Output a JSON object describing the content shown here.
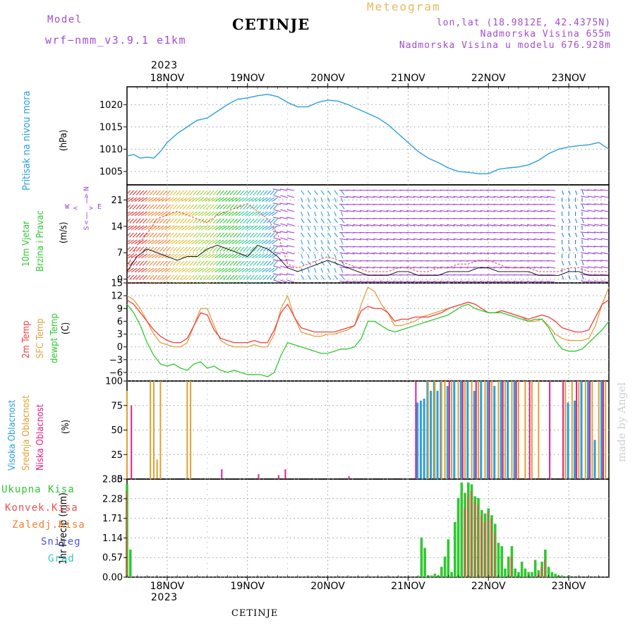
{
  "header": {
    "model_label": "Model",
    "model_name": "wrf−nmm_v3.9.1 e1km",
    "station": "CETINJE",
    "product": "Meteogram",
    "lonlat": "lon,lat (18.9812E, 42.4375N)",
    "elevation": "Nadmorska Visina 655m",
    "model_elevation": "Nadmorska Visina u modelu 676.928m"
  },
  "footer": {
    "station": "CETINJE",
    "watermark": "made by Angel"
  },
  "time_axis": {
    "year": "2023",
    "days": [
      "18NOV",
      "19NOV",
      "20NOV",
      "21NOV",
      "22NOV",
      "23NOV"
    ],
    "start": "2023-11-17T12:00",
    "end": "2023-11-23T12:00"
  },
  "colors": {
    "pressure": "#2a9fe0",
    "temp2m": "#f04040",
    "sfc": "#e0a040",
    "dewpt": "#30c830",
    "high_cloud": "#2a9fe0",
    "mid_cloud": "#e0a030",
    "low_cloud": "#e0208a",
    "total_rain": "#30c830",
    "conv_rain": "#e85050",
    "frz_rain": "#f08030",
    "snow": "#5050e0",
    "hail": "#30c8c0",
    "wind_calm": "#a040e0"
  },
  "chart_data": [
    {
      "type": "line",
      "panel": "pressure",
      "ylabels": [
        "Pritisak na nivou mora",
        "(hPa)"
      ],
      "yticks": [
        1005,
        1010,
        1015,
        1020
      ],
      "ylim": [
        1002,
        1024
      ],
      "grid": true,
      "x_hours": [
        0,
        2,
        4,
        6,
        8,
        10,
        12,
        15,
        18,
        21,
        24,
        27,
        30,
        33,
        36,
        39,
        42,
        45,
        48,
        51,
        54,
        57,
        60,
        63,
        66,
        69,
        72,
        75,
        78,
        81,
        84,
        87,
        90,
        93,
        96,
        99,
        102,
        105,
        108,
        111,
        114,
        117,
        120,
        123,
        126,
        129,
        132,
        135,
        138,
        141,
        144
      ],
      "series": [
        {
          "values": [
            1008.5,
            1008.8,
            1008.0,
            1008.2,
            1008.0,
            1009.5,
            1011.5,
            1013.5,
            1015.0,
            1016.5,
            1017.0,
            1018.5,
            1020.0,
            1021.2,
            1021.5,
            1022.0,
            1022.3,
            1021.8,
            1020.5,
            1019.5,
            1019.5,
            1020.5,
            1021.0,
            1020.8,
            1020.0,
            1019.0,
            1018.0,
            1017.0,
            1015.5,
            1013.5,
            1011.5,
            1009.5,
            1008.0,
            1007.0,
            1005.8,
            1005.0,
            1004.8,
            1004.5,
            1004.5,
            1005.5,
            1005.8,
            1006.0,
            1006.5,
            1007.5,
            1009.0,
            1010.0,
            1010.5,
            1010.8,
            1011.0,
            1011.5,
            1010.0
          ]
        }
      ]
    },
    {
      "type": "line",
      "panel": "wind",
      "ylabels": [
        "10m Vjetar",
        "Brzina i Pravac",
        "(m/s)"
      ],
      "compass": [
        "N",
        "E",
        "S",
        "W"
      ],
      "yticks": [
        0,
        7,
        14,
        21
      ],
      "ylim": [
        -1,
        25
      ],
      "grid": true,
      "x_hours": [
        0,
        3,
        6,
        9,
        12,
        15,
        18,
        21,
        24,
        27,
        30,
        33,
        36,
        39,
        42,
        45,
        48,
        51,
        54,
        57,
        60,
        63,
        66,
        69,
        72,
        75,
        78,
        81,
        84,
        87,
        90,
        93,
        96,
        99,
        102,
        105,
        108,
        111,
        114,
        117,
        120,
        123,
        126,
        129,
        132,
        135,
        138,
        141,
        144
      ],
      "series": [
        {
          "name": "mean",
          "values": [
            2,
            6,
            8,
            7,
            6,
            5,
            6,
            6,
            8,
            9,
            8,
            7,
            6,
            9,
            8,
            6,
            3,
            2,
            3,
            4,
            5,
            4,
            3,
            2,
            1,
            1,
            1,
            2,
            2,
            1,
            1,
            1,
            2,
            2,
            2,
            3,
            3,
            2,
            2,
            2,
            2,
            1,
            1,
            1,
            2,
            2,
            1,
            1,
            1
          ]
        },
        {
          "name": "gust",
          "values": [
            3,
            9,
            12,
            16,
            17,
            18,
            17,
            16,
            15,
            17,
            18,
            19,
            20,
            18,
            16,
            12,
            4,
            3,
            4,
            5,
            6,
            5,
            4,
            3,
            2,
            2,
            2,
            3,
            3,
            2,
            2,
            3,
            3,
            4,
            4,
            5,
            5,
            4,
            3,
            3,
            3,
            2,
            2,
            2,
            3,
            3,
            2,
            2,
            2
          ]
        }
      ]
    },
    {
      "type": "line",
      "panel": "temperature",
      "ylabels": [
        "2m Temp",
        "SFC Temp",
        "dewpt Temp",
        "(C)"
      ],
      "yticks": [
        -6,
        -3,
        0,
        3,
        6,
        9,
        12,
        15
      ],
      "ylim": [
        -8,
        15
      ],
      "grid": true,
      "x_hours": [
        0,
        2,
        4,
        6,
        8,
        10,
        12,
        14,
        16,
        18,
        20,
        22,
        24,
        26,
        28,
        30,
        32,
        34,
        36,
        38,
        40,
        42,
        44,
        46,
        48,
        50,
        52,
        54,
        56,
        58,
        60,
        62,
        64,
        66,
        68,
        70,
        72,
        74,
        76,
        78,
        80,
        82,
        84,
        86,
        88,
        90,
        92,
        94,
        96,
        98,
        100,
        102,
        104,
        106,
        108,
        110,
        112,
        114,
        116,
        118,
        120,
        122,
        124,
        126,
        128,
        130,
        132,
        134,
        136,
        138,
        140,
        142,
        144
      ],
      "series": [
        {
          "name": "2m Temp",
          "values": [
            11,
            10,
            8,
            6,
            4,
            2.5,
            1.5,
            1,
            1,
            2,
            5,
            8,
            7.5,
            4,
            2,
            1.5,
            1,
            1,
            1,
            1.5,
            1,
            1,
            4,
            8,
            10,
            7,
            4.5,
            4,
            3.5,
            3.5,
            3.5,
            3.5,
            4,
            4.5,
            5,
            8.5,
            9.5,
            9,
            9,
            8,
            6,
            6.5,
            6.5,
            7,
            7,
            7,
            7.5,
            8,
            9,
            9.5,
            10,
            10.5,
            10,
            9,
            8,
            8,
            8.5,
            8,
            7.5,
            7,
            6.5,
            7,
            7.5,
            7,
            6,
            4.5,
            4,
            3.5,
            3.5,
            4,
            7,
            10,
            11
          ]
        },
        {
          "name": "SFC Temp",
          "values": [
            12,
            11,
            9,
            6,
            3,
            1,
            0.5,
            0,
            0,
            1,
            5,
            9,
            9,
            5,
            1.5,
            0.5,
            0,
            0,
            0,
            0.5,
            0,
            0,
            3,
            9,
            12,
            7,
            3.5,
            3,
            2.5,
            2.5,
            3,
            3,
            3.5,
            4,
            5,
            10,
            14,
            13,
            10,
            8,
            5,
            5,
            5.5,
            6,
            7,
            7.5,
            8,
            8.5,
            9,
            9.5,
            10,
            10.5,
            10,
            9,
            8,
            8,
            8.5,
            8,
            7.5,
            7,
            6,
            6,
            6.5,
            5,
            3,
            2,
            1.5,
            1.5,
            1.5,
            2,
            5,
            10,
            14
          ]
        },
        {
          "name": "dewpt Temp",
          "values": [
            10,
            8,
            5,
            1,
            -2,
            -4,
            -4.5,
            -4,
            -5,
            -5.5,
            -4,
            -3.5,
            -5,
            -4.5,
            -5.5,
            -6,
            -5.5,
            -6,
            -6.5,
            -6.5,
            -6.5,
            -7,
            -6,
            -2,
            1,
            0.5,
            0,
            -0.5,
            -1,
            -1.5,
            -1.5,
            -1,
            -0.5,
            -0.5,
            0,
            2,
            6,
            6,
            5,
            4,
            3.5,
            4,
            4.5,
            5,
            5.5,
            6,
            6.5,
            7,
            7.5,
            8.5,
            9.5,
            10,
            9,
            8.5,
            8,
            8,
            8,
            7.5,
            7,
            6.5,
            6,
            6.5,
            6.5,
            4.5,
            1.5,
            -0.5,
            -1,
            -1,
            -0.5,
            1,
            2.5,
            4,
            6
          ]
        }
      ]
    },
    {
      "type": "bar",
      "panel": "clouds",
      "ylabels": [
        "Visoka Oblacnost",
        "Srednja Oblacnost",
        "Niska Oblacnost",
        "(%)"
      ],
      "yticks": [
        0,
        25,
        50,
        75,
        100
      ],
      "ylim": [
        0,
        100
      ],
      "grid": true,
      "series": [
        {
          "name": "Visoka Oblacnost",
          "x_hours": [
            87,
            88,
            89,
            90,
            91,
            92,
            93,
            94,
            96,
            98,
            100,
            102,
            104,
            106,
            108,
            110,
            112,
            114,
            116,
            132,
            134,
            136,
            138,
            140,
            142
          ],
          "values": [
            78,
            80,
            82,
            100,
            90,
            100,
            90,
            100,
            95,
            100,
            100,
            100,
            90,
            100,
            100,
            95,
            100,
            100,
            100,
            78,
            80,
            100,
            100,
            40,
            100
          ]
        },
        {
          "name": "Srednja Oblacnost",
          "x_hours": [
            0,
            7,
            8,
            9,
            10,
            18,
            19,
            90,
            92,
            94,
            95,
            97,
            99,
            101,
            103,
            105,
            107,
            109,
            111,
            113,
            115,
            117,
            119,
            121,
            123,
            131,
            133,
            135,
            137,
            139,
            141,
            143
          ],
          "values": [
            90,
            100,
            100,
            20,
            100,
            100,
            100,
            100,
            100,
            100,
            100,
            100,
            100,
            100,
            100,
            100,
            100,
            100,
            100,
            100,
            100,
            100,
            100,
            100,
            100,
            100,
            100,
            100,
            100,
            100,
            100,
            100
          ]
        },
        {
          "name": "Niska Oblacnost",
          "x_hours": [
            1,
            28,
            39,
            45,
            47,
            66,
            86,
            96,
            100,
            104,
            108,
            112,
            116,
            120,
            126,
            130,
            134,
            138,
            142
          ],
          "values": [
            75,
            10,
            5,
            4,
            10,
            3,
            100,
            100,
            100,
            100,
            100,
            100,
            100,
            100,
            100,
            100,
            100,
            100,
            100
          ]
        }
      ]
    },
    {
      "type": "bar",
      "panel": "precipitation",
      "ylabels": [
        "1hr Precip (mm)"
      ],
      "legend": [
        "Ukupna Kisa",
        "Konvek.Kisa",
        "Zaledj.Kisa",
        "Snijeg",
        "Grad"
      ],
      "yticks": [
        0,
        0.57,
        1.14,
        1.71,
        2.28,
        2.85
      ],
      "ylim": [
        0,
        2.85
      ],
      "grid": true,
      "series": [
        {
          "name": "Ukupna Kisa",
          "x_hours": [
            0,
            1,
            88,
            89,
            90,
            91,
            92,
            93,
            94,
            95,
            96,
            97,
            98,
            99,
            100,
            101,
            102,
            103,
            104,
            105,
            106,
            107,
            108,
            109,
            110,
            111,
            112,
            113,
            114,
            115,
            116,
            117,
            118,
            119,
            120,
            121,
            122,
            123,
            124,
            125,
            126,
            127,
            128,
            129,
            130,
            131,
            132
          ],
          "values": [
            2.7,
            0.8,
            1.15,
            0.85,
            0.05,
            0.05,
            0.1,
            0.05,
            0.3,
            0.6,
            1.1,
            0.15,
            1.6,
            2.3,
            2.75,
            2.45,
            2.75,
            2.7,
            2.35,
            2.3,
            1.95,
            1.85,
            2.0,
            1.8,
            1.55,
            1.0,
            0.9,
            0.25,
            0.6,
            0.9,
            0.25,
            0.15,
            0.45,
            0.25,
            0.15,
            0.15,
            0.5,
            0.2,
            0.45,
            0.8,
            0.3,
            0.15,
            0.1,
            0.05,
            0.05,
            0.0,
            0.05
          ]
        },
        {
          "name": "Konvek.Kisa",
          "x_hours": [
            0,
            101,
            102,
            103,
            104,
            105,
            106,
            107,
            108,
            109,
            110,
            115,
            123,
            124,
            125
          ],
          "values": [
            2.5,
            2.0,
            2.4,
            2.5,
            2.2,
            2.1,
            1.8,
            1.6,
            1.9,
            1.7,
            1.3,
            0.6,
            0.1,
            0.3,
            0.5
          ]
        }
      ]
    }
  ],
  "rain_legend": [
    "Ukupna Kisa",
    "Konvek.Kisa",
    "Zaledj.Kisa",
    "Snijeg",
    "Grad"
  ]
}
